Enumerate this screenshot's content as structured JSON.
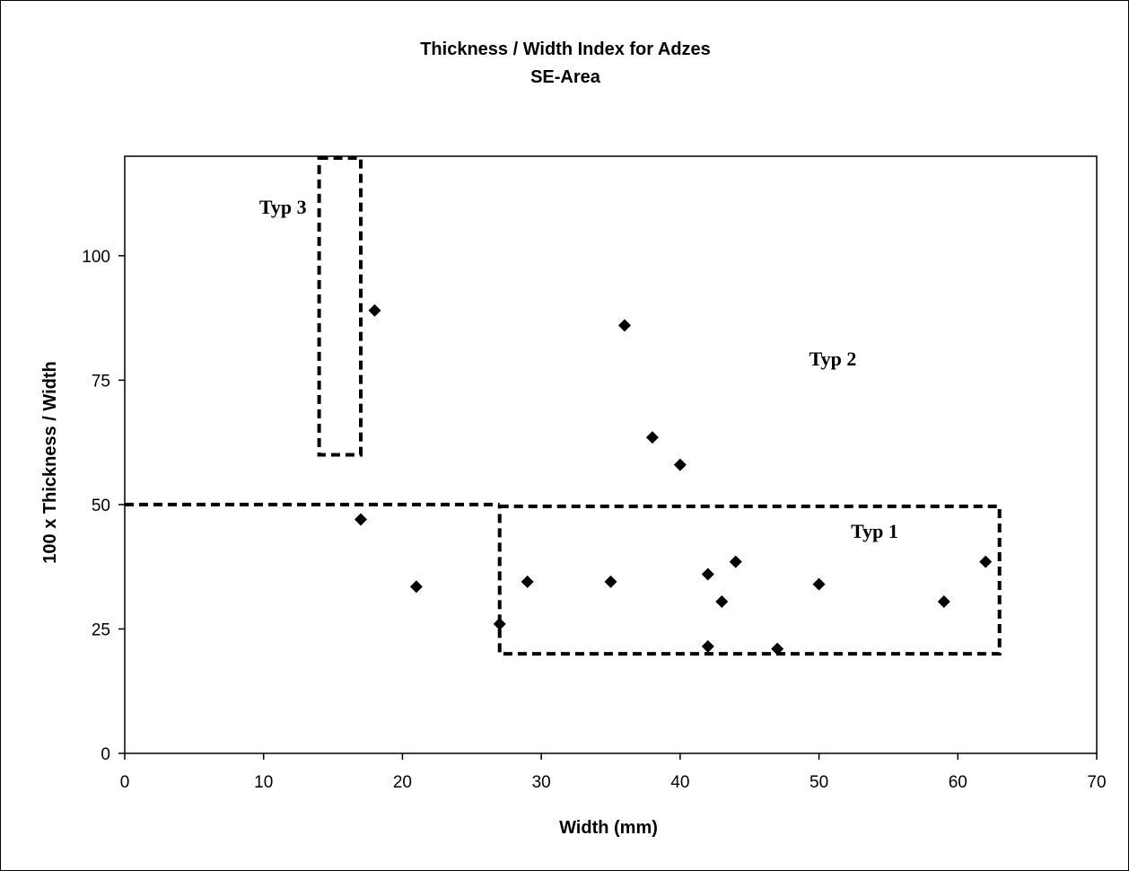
{
  "chart_data": {
    "type": "scatter",
    "title": "Thickness / Width Index for Adzes",
    "subtitle": "SE-Area",
    "xlabel": "Width (mm)",
    "ylabel": "100 x Thickness / Width",
    "xlim": [
      0,
      70
    ],
    "ylim": [
      0,
      120
    ],
    "xticks": [
      0,
      10,
      20,
      30,
      40,
      50,
      60,
      70
    ],
    "yticks": [
      0,
      25,
      50,
      75,
      100
    ],
    "grid": false,
    "legend": "none",
    "marker": "diamond",
    "marker_color": "#000000",
    "points": [
      {
        "x": 18,
        "y": 89
      },
      {
        "x": 36,
        "y": 86
      },
      {
        "x": 38,
        "y": 63.5
      },
      {
        "x": 40,
        "y": 58
      },
      {
        "x": 17,
        "y": 47
      },
      {
        "x": 21,
        "y": 33.5
      },
      {
        "x": 27,
        "y": 26
      },
      {
        "x": 29,
        "y": 34.5
      },
      {
        "x": 35,
        "y": 34.5
      },
      {
        "x": 42,
        "y": 36
      },
      {
        "x": 42,
        "y": 21.5
      },
      {
        "x": 43,
        "y": 30.5
      },
      {
        "x": 44,
        "y": 38.5
      },
      {
        "x": 47,
        "y": 21
      },
      {
        "x": 50,
        "y": 34
      },
      {
        "x": 59,
        "y": 30.5
      },
      {
        "x": 62,
        "y": 38.5
      }
    ],
    "regions": [
      {
        "label": "Typ 3",
        "x0": 14,
        "x1": 17,
        "y0": 60,
        "y1": 120
      },
      {
        "label": "Typ 1",
        "x0": 27,
        "x1": 63,
        "y0": 20,
        "y1": 50
      }
    ],
    "divider_y": 50,
    "annotations": [
      {
        "text": "Typ 2",
        "x": 51,
        "y": 78
      }
    ]
  }
}
